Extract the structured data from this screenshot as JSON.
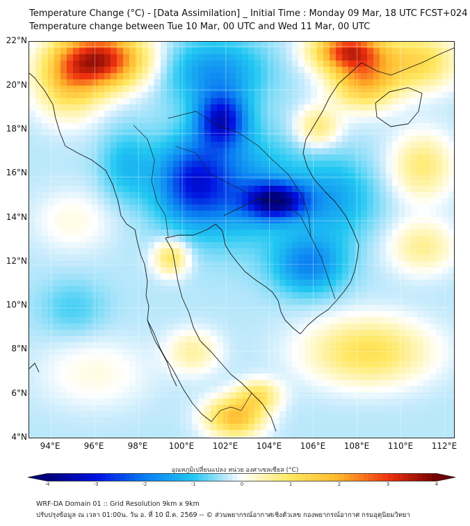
{
  "title": {
    "line1": "Temperature Change (°C) - [Data Assimilation] _ Initial Time : Monday 09 Mar, 18 UTC FCST+024",
    "line2": "Temperature change between Tue 10 Mar, 00 UTC and Wed 11 Mar, 00 UTC"
  },
  "map": {
    "lon_range": [
      93,
      112.5
    ],
    "lat_range": [
      4,
      22.2
    ],
    "lat_ticks": [
      {
        "value": 22,
        "label": "22°N"
      },
      {
        "value": 20,
        "label": "20°N"
      },
      {
        "value": 18,
        "label": "18°N"
      },
      {
        "value": 16,
        "label": "16°N"
      },
      {
        "value": 14,
        "label": "14°N"
      },
      {
        "value": 12,
        "label": "12°N"
      },
      {
        "value": 10,
        "label": "10°N"
      },
      {
        "value": 8,
        "label": "8°N"
      },
      {
        "value": 6,
        "label": "6°N"
      },
      {
        "value": 4,
        "label": "4°N"
      }
    ],
    "lon_ticks": [
      {
        "value": 94,
        "label": "94°E"
      },
      {
        "value": 96,
        "label": "96°E"
      },
      {
        "value": 98,
        "label": "98°E"
      },
      {
        "value": 100,
        "label": "100°E"
      },
      {
        "value": 102,
        "label": "102°E"
      },
      {
        "value": 104,
        "label": "104°E"
      },
      {
        "value": 106,
        "label": "106°E"
      },
      {
        "value": 108,
        "label": "108°E"
      },
      {
        "value": 110,
        "label": "110°E"
      },
      {
        "value": 112,
        "label": "112°E"
      }
    ],
    "field": {
      "base": -0.35,
      "blobs": [
        {
          "lon": 96.3,
          "lat": 21.4,
          "rlon": 2.0,
          "rlat": 1.3,
          "amp": 3.6
        },
        {
          "lon": 94.8,
          "lat": 20.3,
          "rlon": 1.5,
          "rlat": 1.6,
          "amp": 1.6
        },
        {
          "lon": 107.6,
          "lat": 21.8,
          "rlon": 1.6,
          "rlat": 0.9,
          "amp": 3.2
        },
        {
          "lon": 108.3,
          "lat": 20.4,
          "rlon": 1.5,
          "rlat": 1.2,
          "amp": 2.2
        },
        {
          "lon": 110.8,
          "lat": 21.3,
          "rlon": 1.8,
          "rlat": 1.3,
          "amp": 1.6
        },
        {
          "lon": 106.2,
          "lat": 18.3,
          "rlon": 1.0,
          "rlat": 0.9,
          "amp": 1.2
        },
        {
          "lon": 111.0,
          "lat": 16.5,
          "rlon": 1.4,
          "rlat": 1.5,
          "amp": 1.2
        },
        {
          "lon": 111.0,
          "lat": 12.8,
          "rlon": 1.5,
          "rlat": 1.2,
          "amp": 1.0
        },
        {
          "lon": 108.5,
          "lat": 8.0,
          "rlon": 2.8,
          "rlat": 1.5,
          "amp": 1.5
        },
        {
          "lon": 102.4,
          "lat": 5.0,
          "rlon": 1.3,
          "rlat": 0.9,
          "amp": 2.1
        },
        {
          "lon": 103.5,
          "lat": 6.0,
          "rlon": 1.0,
          "rlat": 0.7,
          "amp": 1.3
        },
        {
          "lon": 99.5,
          "lat": 12.3,
          "rlon": 0.8,
          "rlat": 0.8,
          "amp": 1.4
        },
        {
          "lon": 100.5,
          "lat": 8.0,
          "rlon": 1.2,
          "rlat": 1.0,
          "amp": 0.9
        },
        {
          "lon": 95.0,
          "lat": 14.0,
          "rlon": 1.8,
          "rlat": 1.4,
          "amp": 0.5
        },
        {
          "lon": 96.0,
          "lat": 7.0,
          "rlon": 2.5,
          "rlat": 1.6,
          "amp": 0.5
        },
        {
          "lon": 101.8,
          "lat": 18.6,
          "rlon": 1.1,
          "rlat": 1.2,
          "amp": -2.7
        },
        {
          "lon": 104.3,
          "lat": 14.9,
          "rlon": 1.4,
          "rlat": 0.8,
          "amp": -3.0
        },
        {
          "lon": 100.5,
          "lat": 15.8,
          "rlon": 1.6,
          "rlat": 1.8,
          "amp": -2.0
        },
        {
          "lon": 102.5,
          "lat": 15.5,
          "rlon": 2.8,
          "rlat": 2.4,
          "amp": -1.3
        },
        {
          "lon": 101.5,
          "lat": 20.8,
          "rlon": 2.2,
          "rlat": 1.5,
          "amp": -1.3
        },
        {
          "lon": 105.8,
          "lat": 12.0,
          "rlon": 1.6,
          "rlat": 1.3,
          "amp": -1.5
        },
        {
          "lon": 107.0,
          "lat": 15.0,
          "rlon": 1.8,
          "rlat": 1.8,
          "amp": -1.0
        },
        {
          "lon": 97.5,
          "lat": 16.5,
          "rlon": 1.2,
          "rlat": 1.6,
          "amp": -0.8
        },
        {
          "lon": 95.0,
          "lat": 10.0,
          "rlon": 1.5,
          "rlat": 1.2,
          "amp": -0.5
        }
      ]
    }
  },
  "colorbar": {
    "title": "อุณหภูมิเปลี่ยนแปลง หน่วย องศาเซลเซียส (°C)",
    "min": -4,
    "max": 4,
    "ticks": [
      {
        "value": -4,
        "label": "-4"
      },
      {
        "value": -3,
        "label": "-3"
      },
      {
        "value": -2,
        "label": "-2"
      },
      {
        "value": -1,
        "label": "-1"
      },
      {
        "value": 0,
        "label": "0"
      },
      {
        "value": 1,
        "label": "1"
      },
      {
        "value": 2,
        "label": "2"
      },
      {
        "value": 3,
        "label": "3"
      },
      {
        "value": 4,
        "label": "4"
      }
    ],
    "stops": [
      {
        "v": -4,
        "c": "#00007a"
      },
      {
        "v": -3,
        "c": "#0010e0"
      },
      {
        "v": -2,
        "c": "#0a7cf2"
      },
      {
        "v": -1,
        "c": "#22c8f2"
      },
      {
        "v": -0.3,
        "c": "#c4eafc"
      },
      {
        "v": 0,
        "c": "#ffffff"
      },
      {
        "v": 0.3,
        "c": "#fff8c8"
      },
      {
        "v": 1,
        "c": "#ffe860"
      },
      {
        "v": 2,
        "c": "#ffb52a"
      },
      {
        "v": 3,
        "c": "#f03210"
      },
      {
        "v": 4,
        "c": "#700000"
      }
    ]
  },
  "footer": {
    "line1": "WRF-DA Domain 01 :: Grid Resolution 9km x 9km",
    "line2": "ปรับปรุงข้อมูล ณ เวลา 01:00น. วัน อ. ที่ 10 มี.ค. 2569 -- © ส่วนพยากรณ์อากาศเชิงตัวเลข กองพยากรณ์อากาศ กรมอุตุนิยมวิทยา"
  }
}
